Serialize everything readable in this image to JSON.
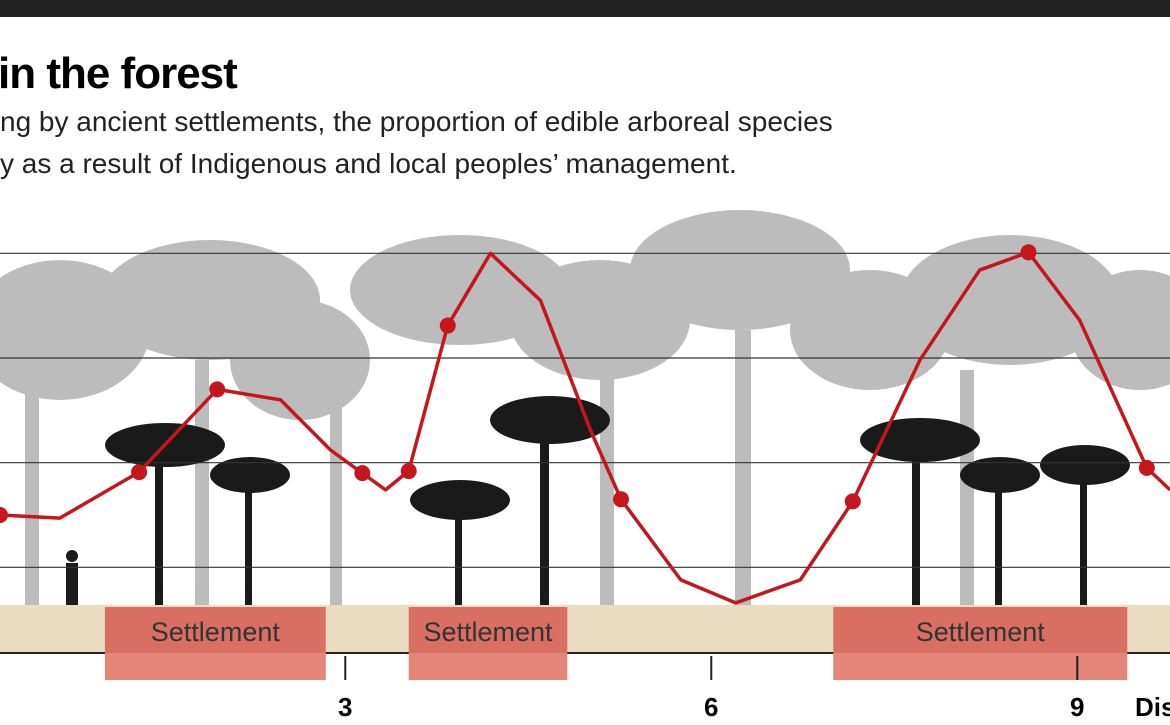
{
  "chart_data": {
    "type": "line",
    "title": "in the forest",
    "subtitle": [
      "ng by ancient settlements, the proportion of edible arboreal species",
      "y as a result of Indigenous and local peoples’ management."
    ],
    "xlabel": "Dis",
    "xlim": [
      0.17,
      9.76
    ],
    "xticks": [
      3,
      6,
      9
    ],
    "ylim": [
      0,
      45
    ],
    "yticks": [
      10,
      20,
      30,
      40
    ],
    "grid": true,
    "color": "#c4161c",
    "line": {
      "x": [
        0.17,
        0.66,
        1.31,
        1.95,
        2.47,
        2.88,
        3.14,
        3.33,
        3.52,
        3.84,
        4.19,
        4.6,
        5.01,
        5.26,
        5.75,
        6.2,
        6.73,
        7.16,
        7.71,
        8.2,
        8.6,
        9.02,
        9.57,
        9.76
      ],
      "values": [
        15.0,
        14.7,
        19.1,
        27.0,
        26.0,
        21.2,
        19.0,
        17.4,
        19.2,
        33.1,
        40.0,
        35.5,
        23.1,
        16.5,
        8.8,
        6.6,
        8.8,
        16.3,
        29.8,
        38.4,
        40.1,
        33.6,
        19.5,
        17.4
      ]
    },
    "points": {
      "x": [
        0.17,
        1.31,
        1.95,
        3.14,
        3.52,
        3.84,
        5.26,
        7.16,
        8.6,
        9.57
      ],
      "values": [
        15.0,
        19.1,
        27.0,
        19.0,
        19.2,
        33.1,
        16.5,
        16.3,
        40.1,
        19.5
      ]
    },
    "settlements": [
      {
        "label": "Settlement",
        "x": [
          1.03,
          2.84
        ]
      },
      {
        "label": "Settlement",
        "x": [
          3.52,
          4.82
        ]
      },
      {
        "label": "Settlement",
        "x": [
          7.0,
          9.41
        ]
      }
    ]
  }
}
